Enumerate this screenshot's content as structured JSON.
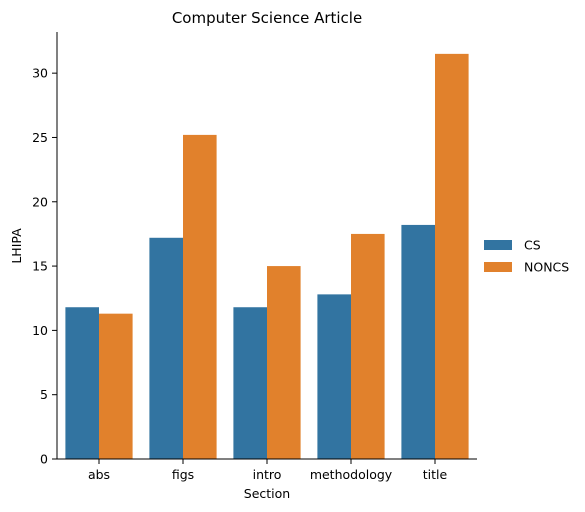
{
  "chart_data": {
    "type": "bar",
    "title": "Computer Science Article",
    "xlabel": "Section",
    "ylabel": "LHIPA",
    "categories": [
      "abs",
      "figs",
      "intro",
      "methodology",
      "title"
    ],
    "series": [
      {
        "name": "CS",
        "values": [
          11.8,
          17.2,
          11.8,
          12.8,
          18.2
        ],
        "color": "#3274a1"
      },
      {
        "name": "NONCS",
        "values": [
          11.3,
          25.2,
          15.0,
          17.5,
          31.5
        ],
        "color": "#e1812c"
      }
    ],
    "ylim": [
      0,
      33.2
    ],
    "yticks": [
      0,
      5,
      10,
      15,
      20,
      25,
      30
    ],
    "grid": false,
    "legend_position": "right"
  }
}
